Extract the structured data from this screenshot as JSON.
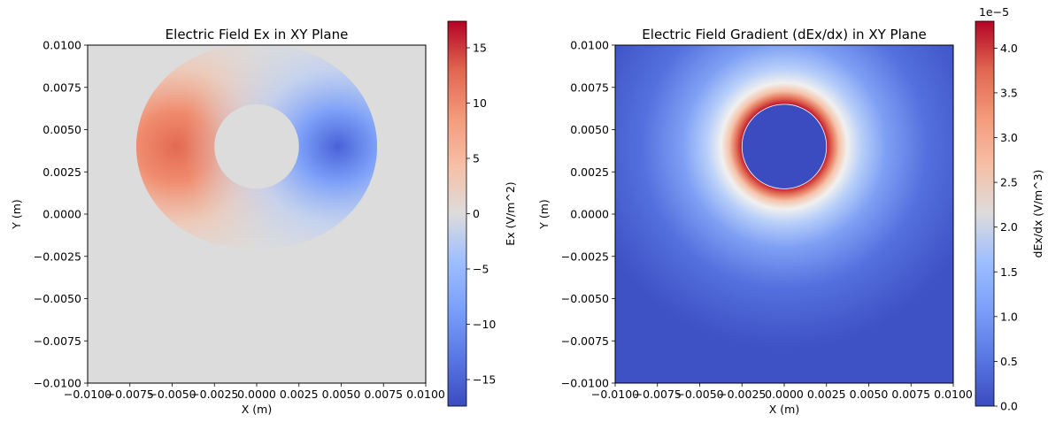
{
  "chart_data": [
    {
      "type": "heatmap",
      "title": "Electric Field Ex in XY Plane",
      "xlabel": "X (m)",
      "ylabel": "Y (m)",
      "xlim": [
        -0.01,
        0.01
      ],
      "ylim": [
        -0.01,
        0.01
      ],
      "x_ticks": [
        "−0.0100",
        "−0.0075",
        "−0.0050",
        "−0.0025",
        "0.0000",
        "0.0025",
        "0.0050",
        "0.0075",
        "0.0100"
      ],
      "y_ticks": [
        "−0.0100",
        "−0.0075",
        "−0.0050",
        "−0.0025",
        "0.0000",
        "0.0025",
        "0.0050",
        "0.0075",
        "0.0100"
      ],
      "x_tick_values": [
        -0.01,
        -0.0075,
        -0.005,
        -0.0025,
        0,
        0.0025,
        0.005,
        0.0075,
        0.01
      ],
      "y_tick_values": [
        -0.01,
        -0.0075,
        -0.005,
        -0.0025,
        0,
        0.0025,
        0.005,
        0.0075,
        0.01
      ],
      "colormap": "coolwarm",
      "circle": {
        "center": [
          0,
          0.004
        ],
        "radius": 0.0025
      },
      "colorbar": {
        "label": "Ex (V/m^2)",
        "range": [
          -17.4,
          17.4
        ],
        "ticks": [
          "15",
          "10",
          "5",
          "0",
          "−5",
          "−10",
          "−15"
        ],
        "tick_values": [
          15,
          10,
          5,
          0,
          -5,
          -10,
          -15
        ],
        "offset_text": ""
      }
    },
    {
      "type": "heatmap",
      "title": "Electric Field Gradient (dEx/dx) in XY Plane",
      "xlabel": "X (m)",
      "ylabel": "Y (m)",
      "xlim": [
        -0.01,
        0.01
      ],
      "ylim": [
        -0.01,
        0.01
      ],
      "x_ticks": [
        "−0.0100",
        "−0.0075",
        "−0.0050",
        "−0.0025",
        "0.0000",
        "0.0025",
        "0.0050",
        "0.0075",
        "0.0100"
      ],
      "y_ticks": [
        "−0.0100",
        "−0.0075",
        "−0.0050",
        "−0.0025",
        "0.0000",
        "0.0025",
        "0.0050",
        "0.0075",
        "0.0100"
      ],
      "x_tick_values": [
        -0.01,
        -0.0075,
        -0.005,
        -0.0025,
        0,
        0.0025,
        0.005,
        0.0075,
        0.01
      ],
      "y_tick_values": [
        -0.01,
        -0.0075,
        -0.005,
        -0.0025,
        0,
        0.0025,
        0.005,
        0.0075,
        0.01
      ],
      "colormap": "coolwarm",
      "circle": {
        "center": [
          0,
          0.004
        ],
        "radius": 0.0025
      },
      "colorbar": {
        "label": "dEx/dx (V/m^3)",
        "range": [
          0,
          4.3
        ],
        "ticks": [
          "4.0",
          "3.5",
          "3.0",
          "2.5",
          "2.0",
          "1.5",
          "1.0",
          "0.5",
          "0.0"
        ],
        "tick_values": [
          4.0,
          3.5,
          3.0,
          2.5,
          2.0,
          1.5,
          1.0,
          0.5,
          0.0
        ],
        "offset_text": "1e−5"
      }
    }
  ]
}
